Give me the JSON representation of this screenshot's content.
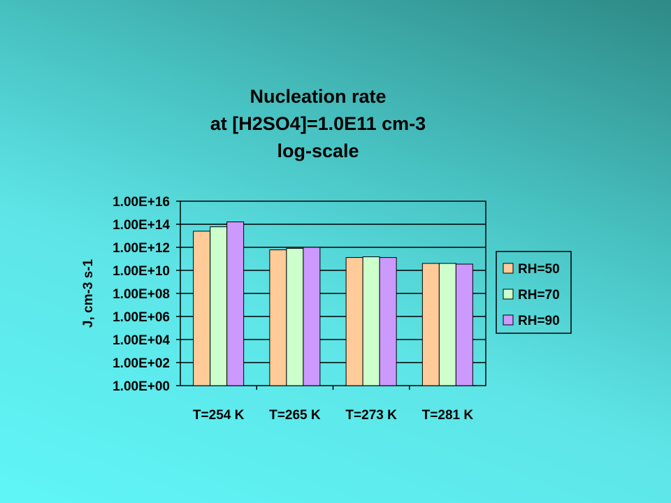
{
  "chart_data": {
    "type": "bar",
    "title_lines": [
      "Nucleation rate",
      "at [H2SO4]=1.0E11 cm-3",
      "log-scale"
    ],
    "ylabel": "J, cm-3 s-1",
    "xlabel": "",
    "y_scale": "log",
    "ylim": [
      1,
      1e+16
    ],
    "yticks": [
      "1.00E+00",
      "1.00E+02",
      "1.00E+04",
      "1.00E+06",
      "1.00E+08",
      "1.00E+10",
      "1.00E+12",
      "1.00E+14",
      "1.00E+16"
    ],
    "grid": "horizontal major gridlines",
    "legend_position": "right",
    "categories": [
      "T=254 K",
      "T=265 K",
      "T=273 K",
      "T=281 K"
    ],
    "series": [
      {
        "name": "RH=50",
        "color": "#ffcc99",
        "values": [
          25000000000000.0,
          600000000000.0,
          130000000000.0,
          40000000000.0
        ]
      },
      {
        "name": "RH=70",
        "color": "#ccffcc",
        "values": [
          60000000000000.0,
          800000000000.0,
          150000000000.0,
          40000000000.0
        ]
      },
      {
        "name": "RH=90",
        "color": "#cc99ff",
        "values": [
          160000000000000.0,
          1000000000000.0,
          130000000000.0,
          35000000000.0
        ]
      }
    ]
  }
}
